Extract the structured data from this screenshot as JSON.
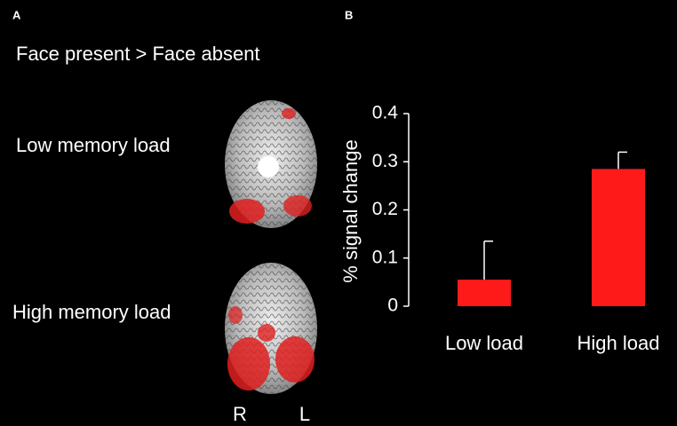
{
  "panel_a": {
    "label": "A",
    "title": "Face present > Face absent",
    "rows": [
      "Low memory load",
      "High memory load"
    ],
    "orientation": [
      "R",
      "L"
    ]
  },
  "chart_data": {
    "type": "bar",
    "label": "B",
    "ylabel": "% signal change",
    "categories": [
      "Low load",
      "High load"
    ],
    "values": [
      0.055,
      0.285
    ],
    "errors": [
      0.08,
      0.035
    ],
    "color": "#ff1a1a",
    "ylim": [
      0,
      0.4
    ],
    "yticks": [
      0,
      0.1,
      0.2,
      0.3,
      0.4
    ]
  }
}
